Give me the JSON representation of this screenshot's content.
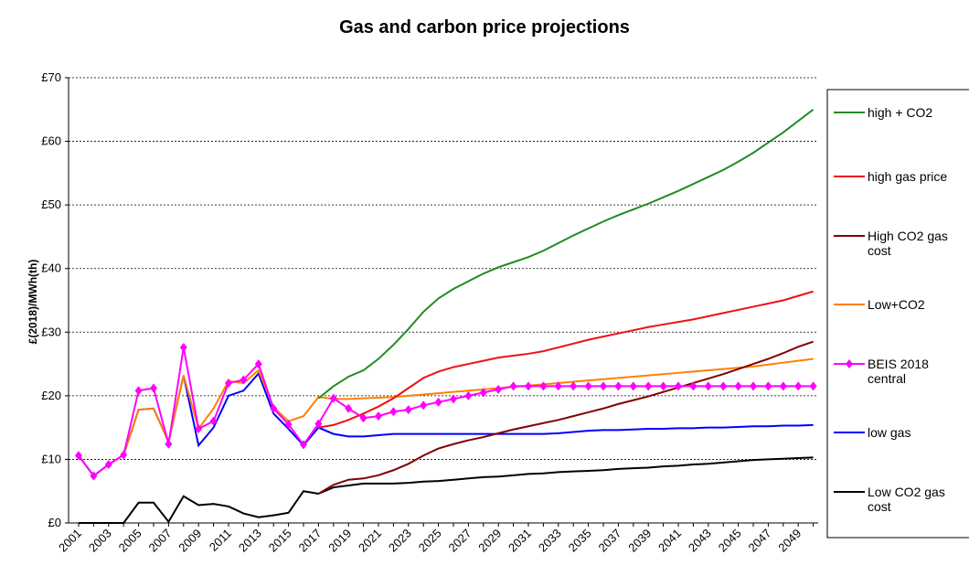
{
  "chart_data": {
    "type": "line",
    "title": "Gas and carbon price projections",
    "y_label": "£(2018)/MWh(th)",
    "categories": [
      "2001",
      null,
      "2003",
      null,
      "2005",
      null,
      "2007",
      null,
      "2009",
      null,
      "2011",
      null,
      "2013",
      null,
      "2015",
      null,
      "2017",
      null,
      "2019",
      null,
      "2021",
      null,
      "2023",
      null,
      "2025",
      null,
      "2027",
      null,
      "2029",
      null,
      "2031",
      null,
      "2033",
      null,
      "2035",
      null,
      "2037",
      null,
      "2039",
      null,
      "2041",
      null,
      "2043",
      null,
      "2045",
      null,
      "2047",
      null,
      "2049",
      null
    ],
    "ylim": [
      0,
      70
    ],
    "yticks": [
      {
        "value": 0,
        "label": "£0"
      },
      {
        "value": 10,
        "label": "£10"
      },
      {
        "value": 20,
        "label": "£20"
      },
      {
        "value": 30,
        "label": "£30"
      },
      {
        "value": 40,
        "label": "£40"
      },
      {
        "value": 50,
        "label": "£50"
      },
      {
        "value": 60,
        "label": "£60"
      },
      {
        "value": 70,
        "label": "£70"
      }
    ],
    "grid": true,
    "legend": "right",
    "series": [
      {
        "name": "high + CO2",
        "color": "#228b22",
        "values": [
          null,
          null,
          null,
          null,
          null,
          null,
          null,
          null,
          null,
          null,
          null,
          null,
          null,
          null,
          null,
          null,
          19.6,
          21.5,
          23.0,
          24.0,
          25.8,
          28.0,
          30.5,
          33.2,
          35.3,
          36.8,
          38.0,
          39.2,
          40.2,
          41.0,
          41.8,
          42.8,
          44.0,
          45.2,
          46.3,
          47.4,
          48.4,
          49.3,
          50.2,
          51.2,
          52.2,
          53.3,
          54.4,
          55.5,
          56.8,
          58.2,
          59.8,
          61.4,
          63.2,
          65.0
        ]
      },
      {
        "name": "high gas price",
        "color": "#ee1111",
        "values": [
          null,
          null,
          null,
          null,
          null,
          null,
          null,
          null,
          null,
          null,
          null,
          null,
          null,
          null,
          null,
          null,
          15.0,
          15.4,
          16.2,
          17.2,
          18.3,
          19.6,
          21.2,
          22.8,
          23.8,
          24.5,
          25.0,
          25.5,
          26.0,
          26.3,
          26.6,
          27.0,
          27.6,
          28.2,
          28.8,
          29.3,
          29.8,
          30.3,
          30.8,
          31.2,
          31.6,
          32.0,
          32.5,
          33.0,
          33.5,
          34.0,
          34.5,
          35.0,
          35.7,
          36.4
        ]
      },
      {
        "name": "High CO2 gas cost",
        "color": "#800000",
        "values": [
          null,
          null,
          null,
          null,
          null,
          null,
          null,
          null,
          null,
          null,
          null,
          null,
          null,
          null,
          null,
          null,
          4.6,
          6.0,
          6.8,
          7.0,
          7.5,
          8.3,
          9.3,
          10.6,
          11.7,
          12.4,
          13.0,
          13.5,
          14.1,
          14.7,
          15.2,
          15.7,
          16.2,
          16.8,
          17.4,
          18.0,
          18.7,
          19.3,
          19.9,
          20.6,
          21.3,
          22.0,
          22.7,
          23.4,
          24.2,
          25.0,
          25.8,
          26.7,
          27.7,
          28.5
        ]
      },
      {
        "name": "Low+CO2",
        "color": "#ff8000",
        "values": [
          10.6,
          7.4,
          9.2,
          10.7,
          17.8,
          18.0,
          12.8,
          23.2,
          14.8,
          18.0,
          22.3,
          22.0,
          24.0,
          18.2,
          16.0,
          16.8,
          19.8,
          19.5,
          19.5,
          19.6,
          19.7,
          19.8,
          20.0,
          20.2,
          20.4,
          20.6,
          20.8,
          21.0,
          21.2,
          21.4,
          21.6,
          21.8,
          22.0,
          22.2,
          22.4,
          22.6,
          22.8,
          23.0,
          23.2,
          23.4,
          23.6,
          23.8,
          24.0,
          24.2,
          24.4,
          24.6,
          24.9,
          25.2,
          25.5,
          25.8
        ]
      },
      {
        "name": "BEIS 2018 central",
        "color": "#ff00ff",
        "marker": "diamond",
        "values": [
          10.6,
          7.4,
          9.2,
          10.7,
          20.8,
          21.2,
          12.4,
          27.6,
          14.8,
          16.0,
          22.0,
          22.5,
          25.0,
          18.0,
          15.5,
          12.3,
          15.6,
          19.6,
          18.0,
          16.5,
          16.8,
          17.5,
          17.8,
          18.5,
          19.0,
          19.5,
          20.0,
          20.5,
          21.0,
          21.5,
          21.5,
          21.5,
          21.5,
          21.5,
          21.5,
          21.5,
          21.5,
          21.5,
          21.5,
          21.5,
          21.5,
          21.5,
          21.5,
          21.5,
          21.5,
          21.5,
          21.5,
          21.5,
          21.5,
          21.5
        ]
      },
      {
        "name": "low gas",
        "color": "#0000ff",
        "values": [
          10.6,
          7.4,
          9.2,
          10.7,
          17.8,
          18.0,
          12.8,
          23.2,
          12.2,
          15.0,
          20.0,
          20.8,
          23.5,
          17.2,
          14.8,
          12.2,
          15.0,
          14.0,
          13.6,
          13.6,
          13.8,
          14.0,
          14.0,
          14.0,
          14.0,
          14.0,
          14.0,
          14.0,
          14.0,
          14.0,
          14.0,
          14.0,
          14.1,
          14.3,
          14.5,
          14.6,
          14.6,
          14.7,
          14.8,
          14.8,
          14.9,
          14.9,
          15.0,
          15.0,
          15.1,
          15.2,
          15.2,
          15.3,
          15.3,
          15.4
        ]
      },
      {
        "name": "Low CO2 gas cost",
        "color": "#000000",
        "values": [
          0,
          0,
          0,
          0,
          3.2,
          3.2,
          0.2,
          4.2,
          2.8,
          3.0,
          2.6,
          1.5,
          0.9,
          1.2,
          1.6,
          5.0,
          4.6,
          5.6,
          5.9,
          6.2,
          6.2,
          6.2,
          6.3,
          6.5,
          6.6,
          6.8,
          7.0,
          7.2,
          7.3,
          7.5,
          7.7,
          7.8,
          8.0,
          8.1,
          8.2,
          8.3,
          8.5,
          8.6,
          8.7,
          8.9,
          9.0,
          9.2,
          9.3,
          9.5,
          9.7,
          9.9,
          10.0,
          10.1,
          10.2,
          10.3
        ]
      }
    ]
  }
}
